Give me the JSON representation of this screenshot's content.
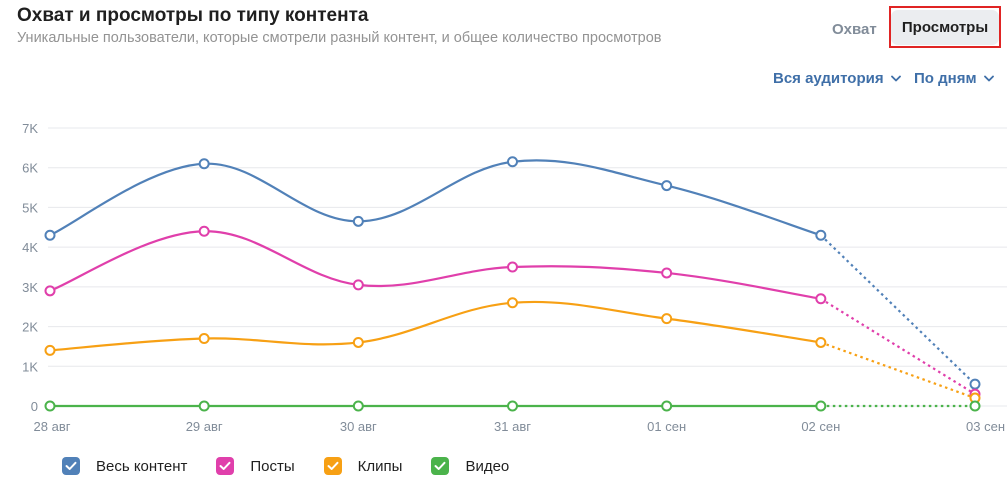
{
  "header": {
    "title": "Охват и просмотры по типу контента",
    "subtitle": "Уникальные пользователи, которые смотрели разный контент, и общее количество просмотров"
  },
  "tabs": {
    "reach_label": "Охват",
    "views_label": "Просмотры",
    "selected": "Просмотры"
  },
  "filters": {
    "audience_label": "Вся аудитория",
    "period_label": "По дням"
  },
  "chart_data": {
    "type": "line",
    "categories": [
      "28 авг",
      "29 авг",
      "30 авг",
      "31 авг",
      "01 сен",
      "02 сен",
      "03 сен"
    ],
    "ytick_labels": [
      "0",
      "1K",
      "2K",
      "3K",
      "4K",
      "5K",
      "6K",
      "7K"
    ],
    "ytick_values": [
      0,
      1000,
      2000,
      3000,
      4000,
      5000,
      6000,
      7000
    ],
    "ylim": [
      0,
      7000
    ],
    "grid": true,
    "dashed_from_index": 5,
    "legend_position": "bottom-left",
    "series": [
      {
        "name": "Весь контент",
        "color": "#5181b8",
        "values": [
          4300,
          6100,
          4650,
          6150,
          5550,
          4300,
          550
        ]
      },
      {
        "name": "Посты",
        "color": "#e03fab",
        "values": [
          2900,
          4400,
          3050,
          3500,
          3350,
          2700,
          300
        ]
      },
      {
        "name": "Клипы",
        "color": "#f7a014",
        "values": [
          1400,
          1700,
          1600,
          2600,
          2200,
          1600,
          200
        ]
      },
      {
        "name": "Видео",
        "color": "#4bb34b",
        "values": [
          0,
          0,
          0,
          0,
          0,
          0,
          0
        ]
      }
    ]
  }
}
